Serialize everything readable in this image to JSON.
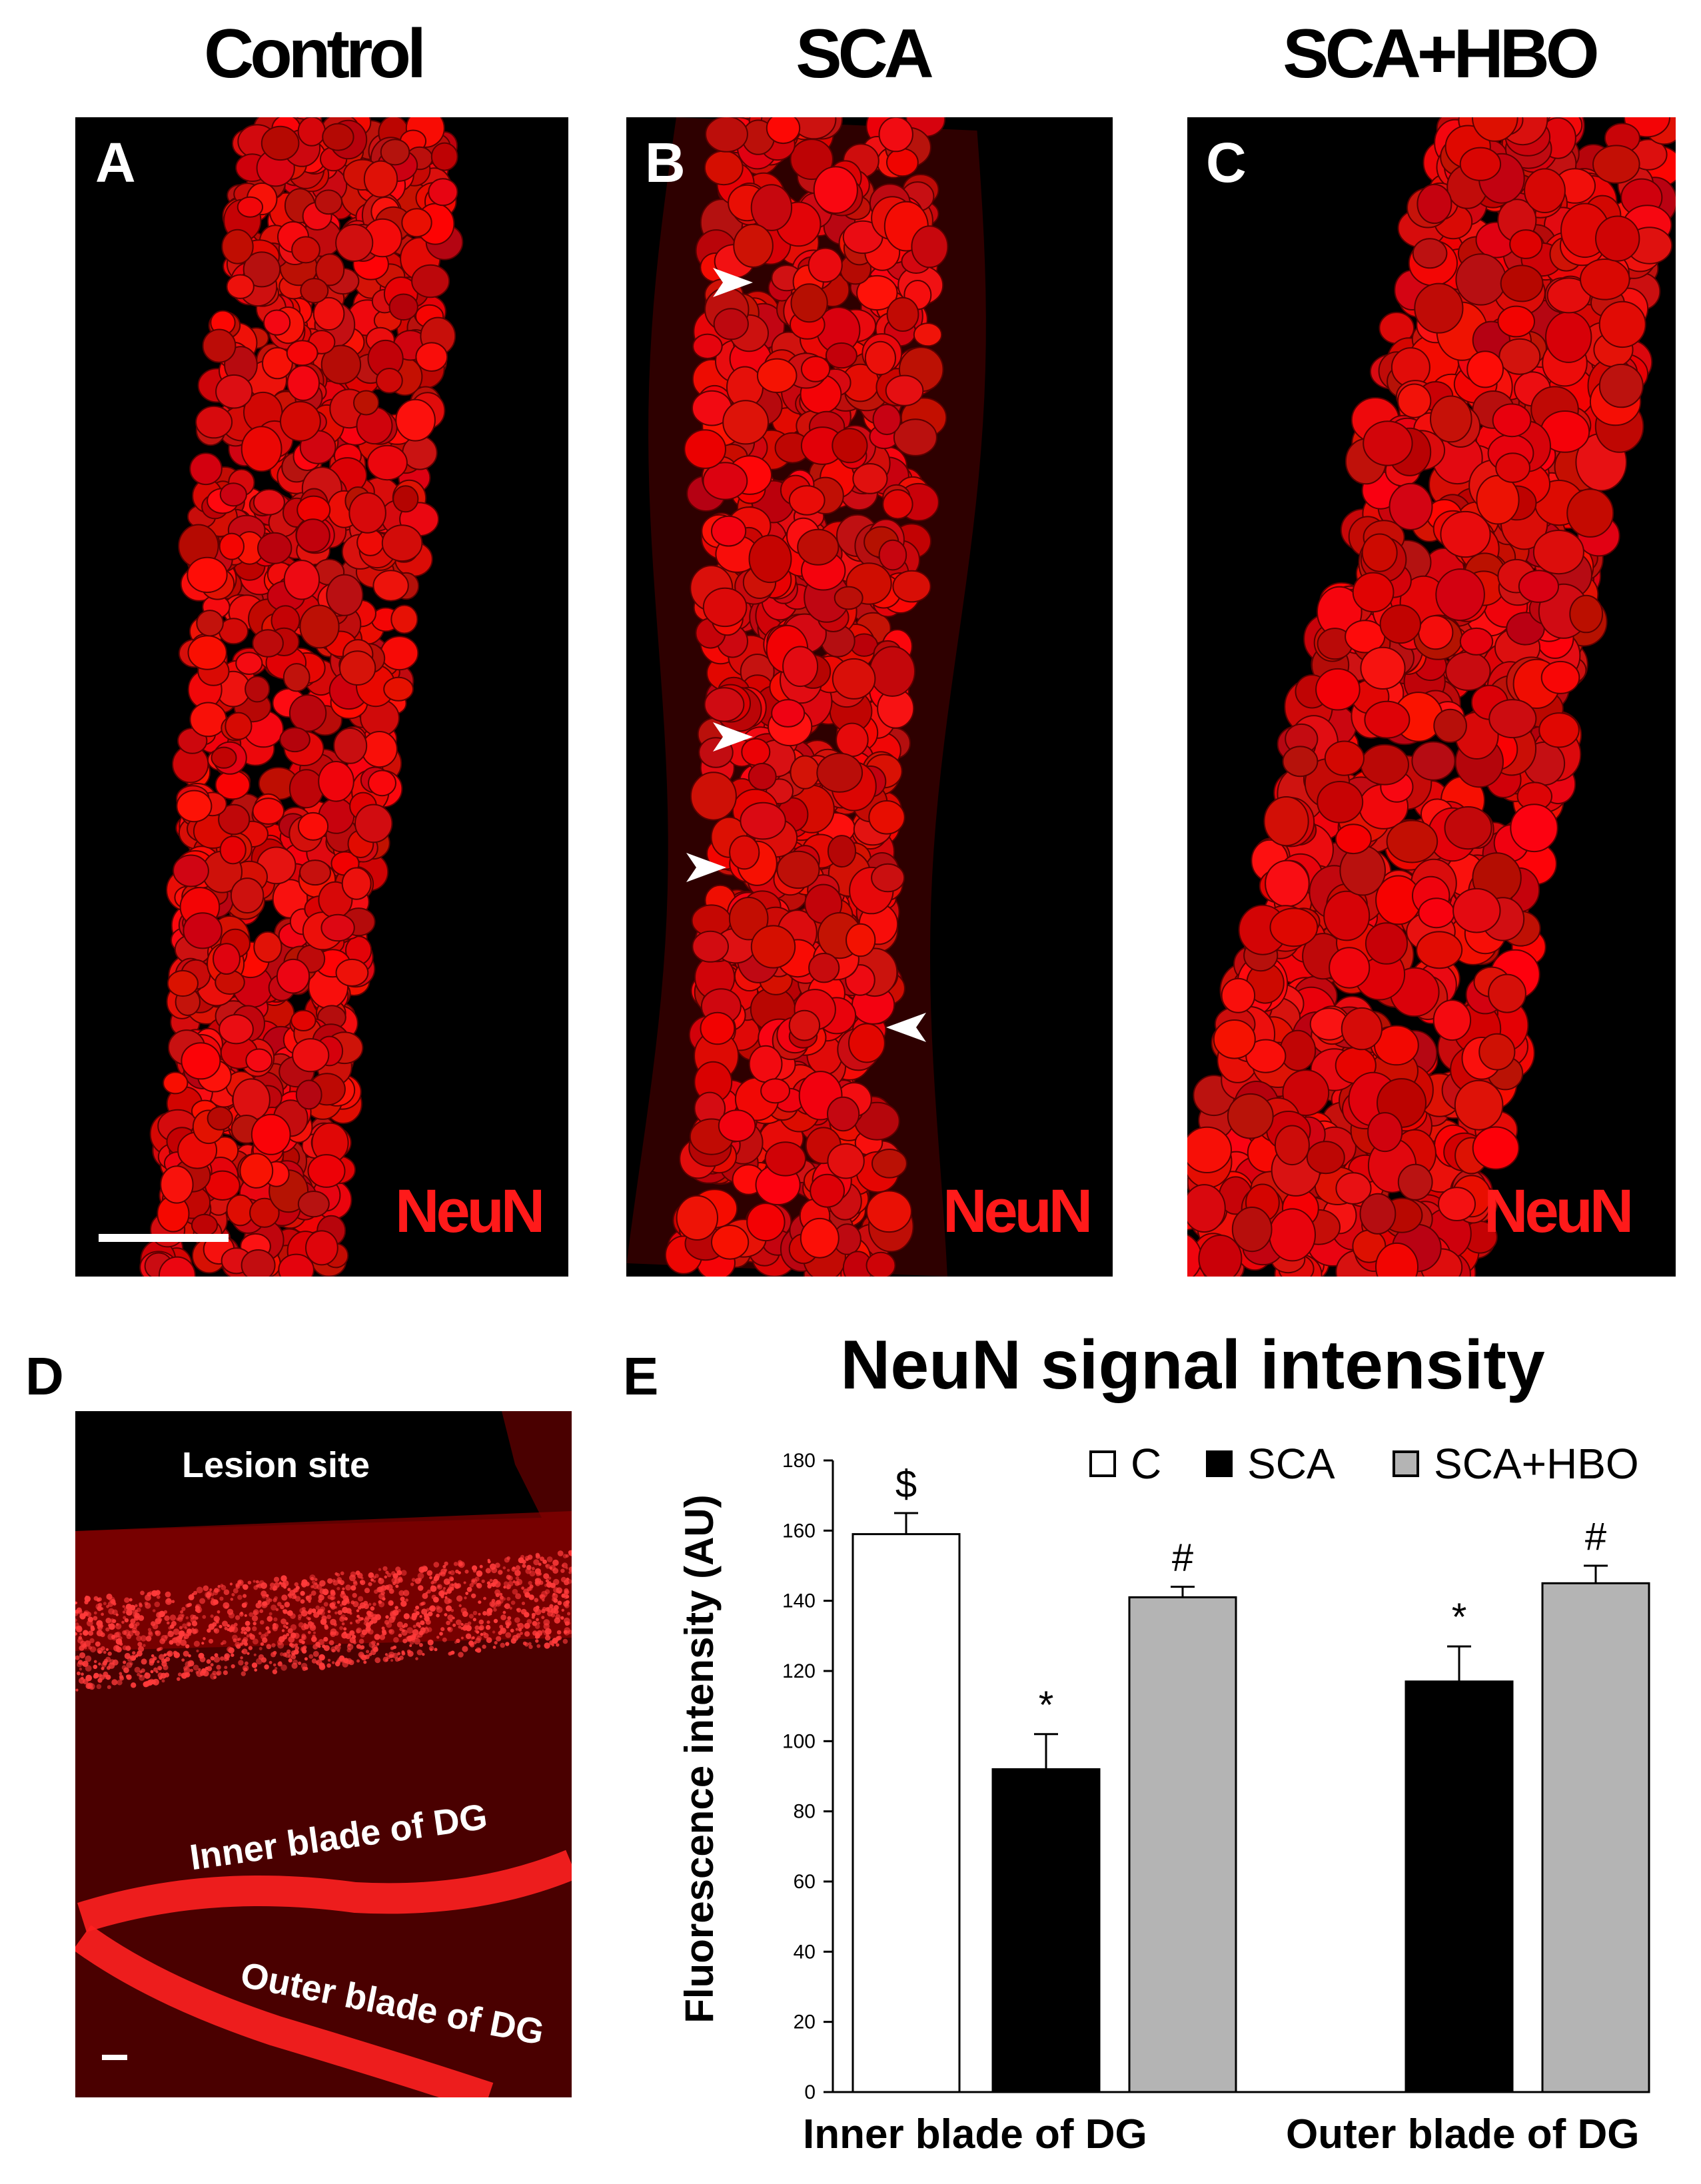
{
  "columns": [
    {
      "title": "Control",
      "letter": "A",
      "stain": "NeuN"
    },
    {
      "title": "SCA",
      "letter": "B",
      "stain": "NeuN"
    },
    {
      "title": "SCA+HBO",
      "letter": "C",
      "stain": "NeuN"
    }
  ],
  "panel_d": {
    "letter": "D",
    "labels": {
      "lesion": "Lesion site",
      "inner": "Inner blade of DG",
      "outer": "Outer blade of DG"
    }
  },
  "panel_e": {
    "letter": "E"
  },
  "colors": {
    "neun_red": "#ff1a1a",
    "bar_control": "#ffffff",
    "bar_sca": "#000000",
    "bar_sca_hbo": "#b4b4b4"
  },
  "chart_data": {
    "type": "bar",
    "title": "NeuN signal intensity",
    "ylabel": "Fluorescence intensity (AU)",
    "xlabel": "",
    "ylim": [
      0,
      180
    ],
    "yticks": [
      0,
      20,
      40,
      60,
      80,
      100,
      120,
      140,
      160,
      180
    ],
    "grid": false,
    "legend": {
      "placement": "top-right",
      "entries": [
        "C",
        "SCA",
        "SCA+HBO"
      ]
    },
    "categories": [
      "Inner blade of DG",
      "Outer blade of DG"
    ],
    "series": [
      {
        "name": "C",
        "values": [
          159,
          null
        ],
        "errors": [
          6,
          null
        ],
        "annotations": [
          "$",
          null
        ]
      },
      {
        "name": "SCA",
        "values": [
          92,
          117
        ],
        "errors": [
          10,
          10
        ],
        "annotations": [
          "*",
          "*"
        ]
      },
      {
        "name": "SCA+HBO",
        "values": [
          141,
          145
        ],
        "errors": [
          3,
          5
        ],
        "annotations": [
          "#",
          "#"
        ]
      }
    ]
  }
}
